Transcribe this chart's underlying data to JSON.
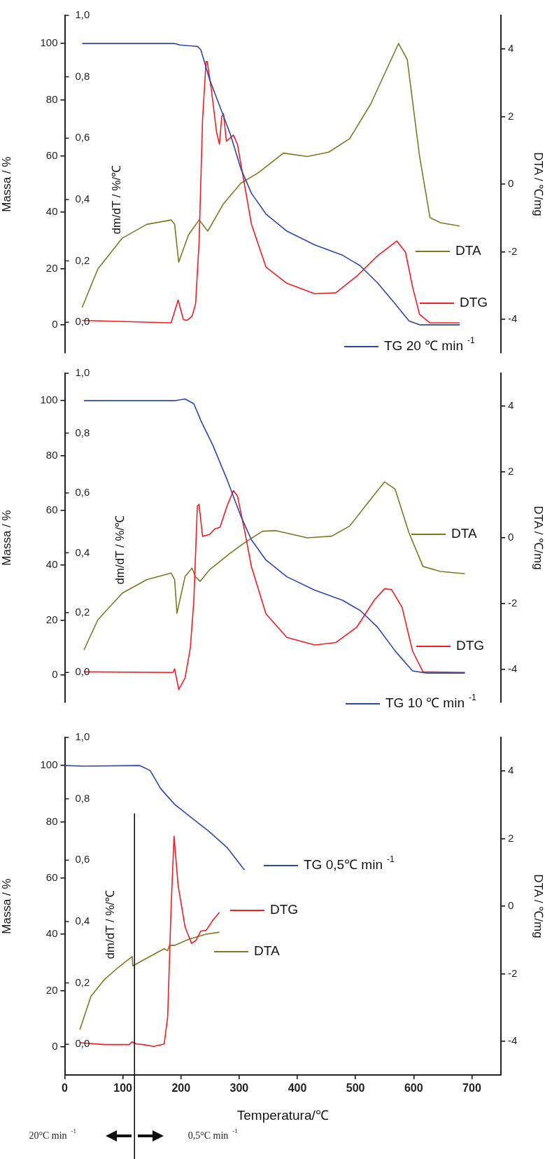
{
  "chart_data": [
    {
      "type": "line",
      "ylabel": "Massa / %",
      "y2label": "DTA / ℃/mg",
      "y3label": "dm/dT / %/℃",
      "xlim": [
        0,
        750
      ],
      "tick_labels": "y",
      "legend": "right",
      "ylim": [
        -10,
        110
      ],
      "yticks": [
        0,
        20,
        40,
        60,
        80,
        100
      ],
      "y2lim": [
        -5,
        5
      ],
      "y2ticks": [
        -4,
        -2,
        0,
        2,
        4
      ],
      "y3lim": [
        -0.1,
        1.0
      ],
      "y3ticks": [
        {
          "value": 0,
          "label": "0,0"
        },
        {
          "value": 0.2,
          "label": "0,2"
        },
        {
          "value": 0.4,
          "label": "0,4"
        },
        {
          "value": 0.6,
          "label": "0,6"
        },
        {
          "value": 0.8,
          "label": "0,8"
        },
        {
          "value": 1.0,
          "label": "1,0"
        }
      ],
      "series": [
        {
          "name": "TG 20 ℃ min$^{-1}$",
          "color": "#2f48a8",
          "x": [
            30,
            189,
            198,
            228,
            234,
            249,
            267,
            285,
            303,
            321,
            346,
            382,
            430,
            478,
            508,
            538,
            568,
            592,
            610,
            679
          ],
          "values": [
            100,
            100,
            99.5,
            99,
            97.8,
            87.3,
            77.5,
            67.6,
            55.4,
            46.8,
            39.4,
            33.3,
            28.4,
            24.7,
            21.0,
            14.9,
            7.5,
            1.4,
            0,
            0
          ]
        },
        {
          "name": "DTG",
          "color": "#f21c24",
          "axis": "y3",
          "x": [
            30,
            183,
            195,
            204,
            210,
            219,
            225,
            231,
            237,
            243,
            245,
            252,
            261,
            266,
            270,
            273,
            278,
            290,
            297,
            309,
            321,
            346,
            382,
            430,
            466,
            502,
            538,
            571,
            586,
            598,
            610,
            628,
            679
          ],
          "values": [
            0.006,
            -0.002,
            0.073,
            0.009,
            0.006,
            0.02,
            0.06,
            0.26,
            0.66,
            0.85,
            0.85,
            0.76,
            0.62,
            0.58,
            0.67,
            0.68,
            0.59,
            0.61,
            0.58,
            0.45,
            0.32,
            0.18,
            0.127,
            0.093,
            0.096,
            0.15,
            0.217,
            0.265,
            0.228,
            0.116,
            0.026,
            -0.002,
            -0.002
          ]
        },
        {
          "name": "DTA",
          "color": "#7a7a26",
          "axis": "y2",
          "x": [
            30,
            57,
            99,
            141,
            183,
            189,
            196,
            213,
            231,
            246,
            273,
            303,
            333,
            376,
            417,
            454,
            490,
            526,
            574,
            589,
            610,
            628,
            646,
            679
          ],
          "values": [
            -3.65,
            -2.51,
            -1.6,
            -1.19,
            -1.06,
            -1.19,
            -2.31,
            -1.5,
            -1.06,
            -1.39,
            -0.58,
            0.03,
            0.34,
            0.92,
            0.82,
            0.95,
            1.35,
            2.37,
            4.17,
            3.69,
            0.84,
            -0.99,
            -1.14,
            -1.24
          ]
        }
      ]
    },
    {
      "type": "line",
      "ylabel": "Massa / %",
      "y2label": "DTA / ℃/mg",
      "y3label": "dm/dT / %/℃",
      "xlim": [
        0,
        750
      ],
      "tick_labels": "y",
      "legend": "right",
      "ylim": [
        -10,
        110
      ],
      "yticks": [
        0,
        20,
        40,
        60,
        80,
        100
      ],
      "y2lim": [
        -5,
        5
      ],
      "y2ticks": [
        -4,
        -2,
        0,
        2,
        4
      ],
      "y3lim": [
        -0.1,
        1.0
      ],
      "y3ticks": [
        {
          "value": 0,
          "label": "0,0"
        },
        {
          "value": 0.2,
          "label": "0,2"
        },
        {
          "value": 0.4,
          "label": "0,4"
        },
        {
          "value": 0.6,
          "label": "0,6"
        },
        {
          "value": 0.8,
          "label": "0,8"
        },
        {
          "value": 1.0,
          "label": "1,0"
        }
      ],
      "series": [
        {
          "name": "TG 10 ℃ min$^{-1}$",
          "color": "#2f48a8",
          "x": [
            33,
            189,
            207,
            222,
            234,
            255,
            279,
            303,
            321,
            346,
            382,
            430,
            478,
            508,
            538,
            568,
            598,
            622,
            688
          ],
          "values": [
            100,
            100,
            100.6,
            98.9,
            92.8,
            83.6,
            71.3,
            57.8,
            49.3,
            41.9,
            35.8,
            30.9,
            27.2,
            23.5,
            17.4,
            8.8,
            1.5,
            0.7,
            0.7
          ]
        },
        {
          "name": "DTG",
          "color": "#f21c24",
          "axis": "y3",
          "x": [
            33,
            186,
            189,
            196,
            207,
            216,
            222,
            228,
            231,
            237,
            249,
            258,
            267,
            279,
            290,
            297,
            309,
            321,
            346,
            382,
            430,
            466,
            502,
            532,
            550,
            562,
            580,
            598,
            616,
            688
          ],
          "values": [
            0.002,
            0,
            0.012,
            -0.057,
            -0.018,
            0.083,
            0.24,
            0.556,
            0.562,
            0.455,
            0.461,
            0.48,
            0.485,
            0.556,
            0.608,
            0.59,
            0.477,
            0.354,
            0.196,
            0.117,
            0.092,
            0.1,
            0.151,
            0.241,
            0.28,
            0.277,
            0.218,
            0.072,
            0.002,
            0
          ]
        },
        {
          "name": "DTA",
          "color": "#7a7a26",
          "axis": "y2",
          "x": [
            33,
            57,
            99,
            141,
            183,
            189,
            193,
            207,
            219,
            225,
            233,
            249,
            285,
            309,
            340,
            363,
            417,
            459,
            490,
            526,
            550,
            568,
            592,
            616,
            646,
            688
          ],
          "values": [
            -3.41,
            -2.49,
            -1.68,
            -1.27,
            -1.07,
            -1.27,
            -2.29,
            -1.17,
            -0.92,
            -1.19,
            -1.32,
            -0.97,
            -0.46,
            -0.15,
            0.2,
            0.22,
            0.0,
            0.05,
            0.36,
            1.17,
            1.7,
            1.48,
            0.15,
            -0.87,
            -1.02,
            -1.09
          ]
        }
      ]
    },
    {
      "type": "line",
      "xlabel": "Temperatura/℃",
      "ylabel": "Massa / %",
      "y2label": "DTA / ℃/mg",
      "y3label": "dm/dT / %/℃",
      "xlim": [
        0,
        750
      ],
      "xticks": [
        0,
        100,
        200,
        300,
        400,
        500,
        600,
        700
      ],
      "legend": "right",
      "ylim": [
        -10,
        110
      ],
      "yticks": [
        0,
        20,
        40,
        60,
        80,
        100
      ],
      "y2lim": [
        -5,
        5
      ],
      "y2ticks": [
        -4,
        -2,
        0,
        2,
        4
      ],
      "y3lim": [
        -0.1,
        1.0
      ],
      "y3ticks": [
        {
          "value": 0,
          "label": "0,0"
        },
        {
          "value": 0.2,
          "label": "0,2"
        },
        {
          "value": 0.4,
          "label": "0,4"
        },
        {
          "value": 0.6,
          "label": "0,6"
        },
        {
          "value": 0.8,
          "label": "0,8"
        },
        {
          "value": 1.0,
          "label": "1,0"
        }
      ],
      "ref_lines": [
        {
          "axis": "x",
          "value": 120,
          "color": "#000000"
        }
      ],
      "annotations": [
        "20°C min$^{-1}$",
        "0,5°C min$^{-1}$"
      ],
      "series": [
        {
          "name": "TG 0,5℃ min$^{-1}$",
          "color": "#2f48a8",
          "x": [
            0,
            33,
            129,
            135,
            147,
            165,
            189,
            219,
            249,
            279,
            309
          ],
          "values": [
            100,
            99.8,
            100,
            99.4,
            98.2,
            91.8,
            86.2,
            81.3,
            76.4,
            70.9,
            62.9
          ]
        },
        {
          "name": "DTG",
          "color": "#f21c24",
          "axis": "y3",
          "x": [
            27,
            69,
            111,
            116,
            123,
            135,
            153,
            171,
            177,
            183,
            188,
            195,
            207,
            218,
            225,
            234,
            243,
            255,
            266
          ],
          "values": [
            0.005,
            -0.001,
            -0.001,
            0.008,
            0.001,
            -0.001,
            -0.007,
            0.001,
            0.089,
            0.45,
            0.678,
            0.517,
            0.382,
            0.329,
            0.337,
            0.369,
            0.371,
            0.405,
            0.43
          ]
        },
        {
          "name": "DTA",
          "color": "#7a7a26",
          "axis": "y2",
          "x": [
            26,
            45,
            69,
            93,
            116,
            117,
            141,
            171,
            177,
            180,
            189,
            213,
            243,
            266
          ],
          "values": [
            -3.66,
            -2.67,
            -2.16,
            -1.8,
            -1.49,
            -1.77,
            -1.54,
            -1.26,
            -1.32,
            -1.16,
            -1.16,
            -0.98,
            -0.83,
            -0.77
          ]
        }
      ]
    }
  ]
}
